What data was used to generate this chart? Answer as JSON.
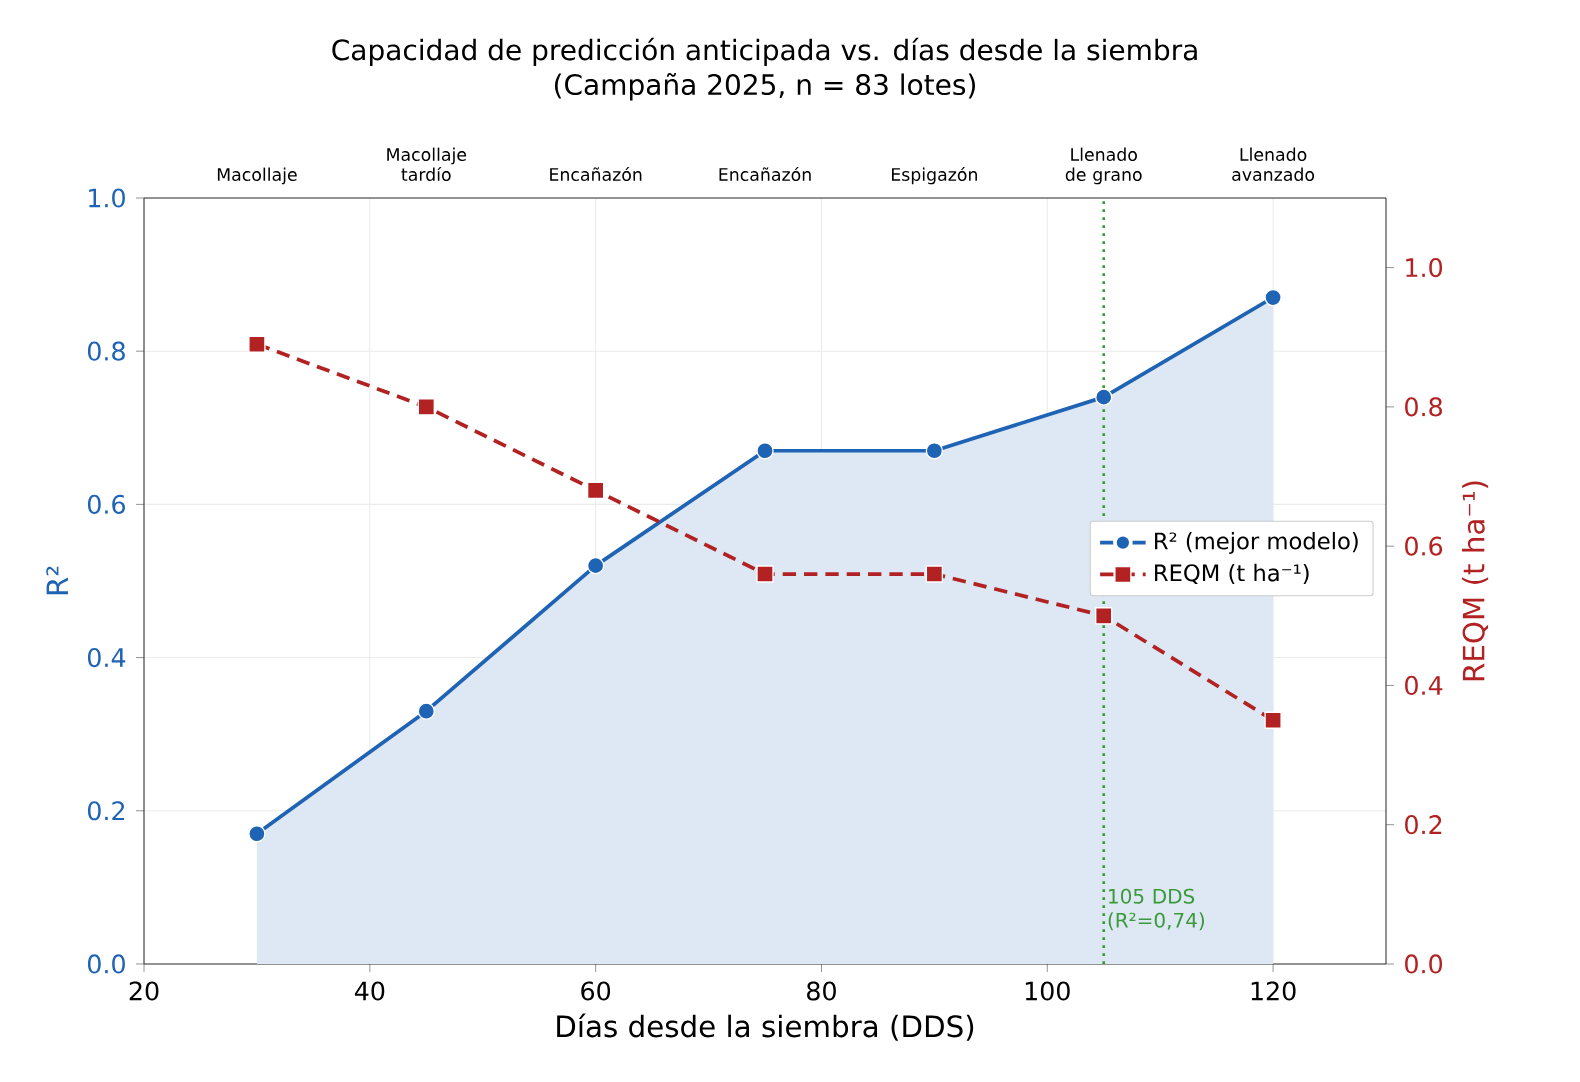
{
  "chart_data": {
    "type": "line",
    "title": "Capacidad de predicción anticipada vs. días desde la siembra",
    "subtitle": "(Campaña 2025, n = 83 lotes)",
    "xlabel": "Días desde la siembra (DDS)",
    "ylabel": "R²",
    "y2label": "REQM (t ha⁻¹)",
    "x": [
      30,
      45,
      60,
      75,
      90,
      105,
      120
    ],
    "series": [
      {
        "name": "R² (mejor modelo)",
        "type": "area",
        "color": "#1f63b5",
        "marker": "circle",
        "line_style": "solid",
        "values": [
          0.17,
          0.33,
          0.52,
          0.67,
          0.67,
          0.74,
          0.87
        ]
      },
      {
        "name": "REQM (t ha⁻¹)",
        "axis": "y2",
        "color": "#b22222",
        "marker": "square",
        "line_style": "dashed",
        "values": [
          0.89,
          0.8,
          0.68,
          0.56,
          0.56,
          0.5,
          0.35
        ]
      }
    ],
    "xlim": [
      20,
      130
    ],
    "xticks": [
      20,
      40,
      60,
      80,
      100,
      120
    ],
    "ylim": [
      0,
      1
    ],
    "yticks": [
      {
        "value": 0,
        "label": "0.0"
      },
      0.2,
      0.4,
      0.6,
      0.8,
      {
        "value": 1,
        "label": "1.0"
      }
    ],
    "y2lim": [
      0,
      1.1
    ],
    "y2ticks": [
      {
        "value": 0,
        "label": "0.0"
      },
      0.2,
      0.4,
      0.6,
      0.8,
      {
        "value": 1,
        "label": "1.0"
      }
    ],
    "annotations": [
      "Macollaje",
      "Macollaje tardío",
      "Encañazón",
      "Encañazón",
      "Espigazón",
      "Llenado de grano",
      "Llenado avanzado"
    ],
    "ref_lines": [
      {
        "axis": "x",
        "value": 105,
        "label": "105 DDS (R²=0,74)",
        "color": "#3a9a3a",
        "line_style": "dotted"
      }
    ],
    "grid": true,
    "legend": "right"
  }
}
